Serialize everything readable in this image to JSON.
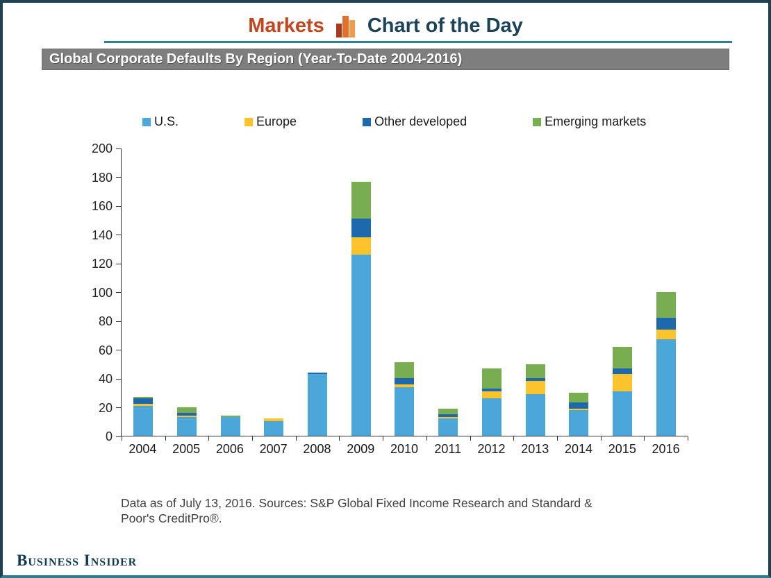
{
  "header": {
    "brand": "Markets",
    "title": "Chart of the Day",
    "brand_color": "#c0461f",
    "title_color": "#1c4257",
    "divider_color": "#2e7f93"
  },
  "chart_title": "Global Corporate Defaults By Region (Year-To-Date 2004-2016)",
  "footnote": {
    "line1": "Data as of July 13, 2016. Sources: S&P Global Fixed Income Research and Standard  &",
    "line2": "Poor's CreditPro®."
  },
  "footer_logo": "Business Insider",
  "chart_data": {
    "type": "bar",
    "stacked": true,
    "title": "Global Corporate Defaults By Region (Year-To-Date 2004-2016)",
    "categories": [
      "2004",
      "2005",
      "2006",
      "2007",
      "2008",
      "2009",
      "2010",
      "2011",
      "2012",
      "2013",
      "2014",
      "2015",
      "2016"
    ],
    "series": [
      {
        "name": "U.S.",
        "color": "#4ba7d9",
        "values": [
          21,
          13,
          13,
          10,
          43,
          126,
          34,
          12,
          26,
          29,
          18,
          31,
          67
        ]
      },
      {
        "name": "Europe",
        "color": "#fcc42c",
        "values": [
          1,
          1,
          0,
          2,
          0,
          12,
          2,
          1,
          5,
          9,
          1,
          12,
          7
        ]
      },
      {
        "name": "Other developed",
        "color": "#1e68ae",
        "values": [
          4,
          2,
          0,
          0,
          1,
          13,
          4,
          2,
          2,
          2,
          4,
          4,
          8
        ]
      },
      {
        "name": "Emerging markets",
        "color": "#78ad51",
        "values": [
          1,
          4,
          1,
          0,
          0,
          26,
          11,
          4,
          14,
          10,
          7,
          15,
          18
        ]
      }
    ],
    "totals": [
      27,
      20,
      14,
      12,
      44,
      177,
      51,
      19,
      47,
      50,
      30,
      62,
      100
    ],
    "xlabel": "",
    "ylabel": "",
    "ylim": [
      0,
      200
    ],
    "ytick_step": 20,
    "grid": false,
    "legend_position": "top"
  }
}
